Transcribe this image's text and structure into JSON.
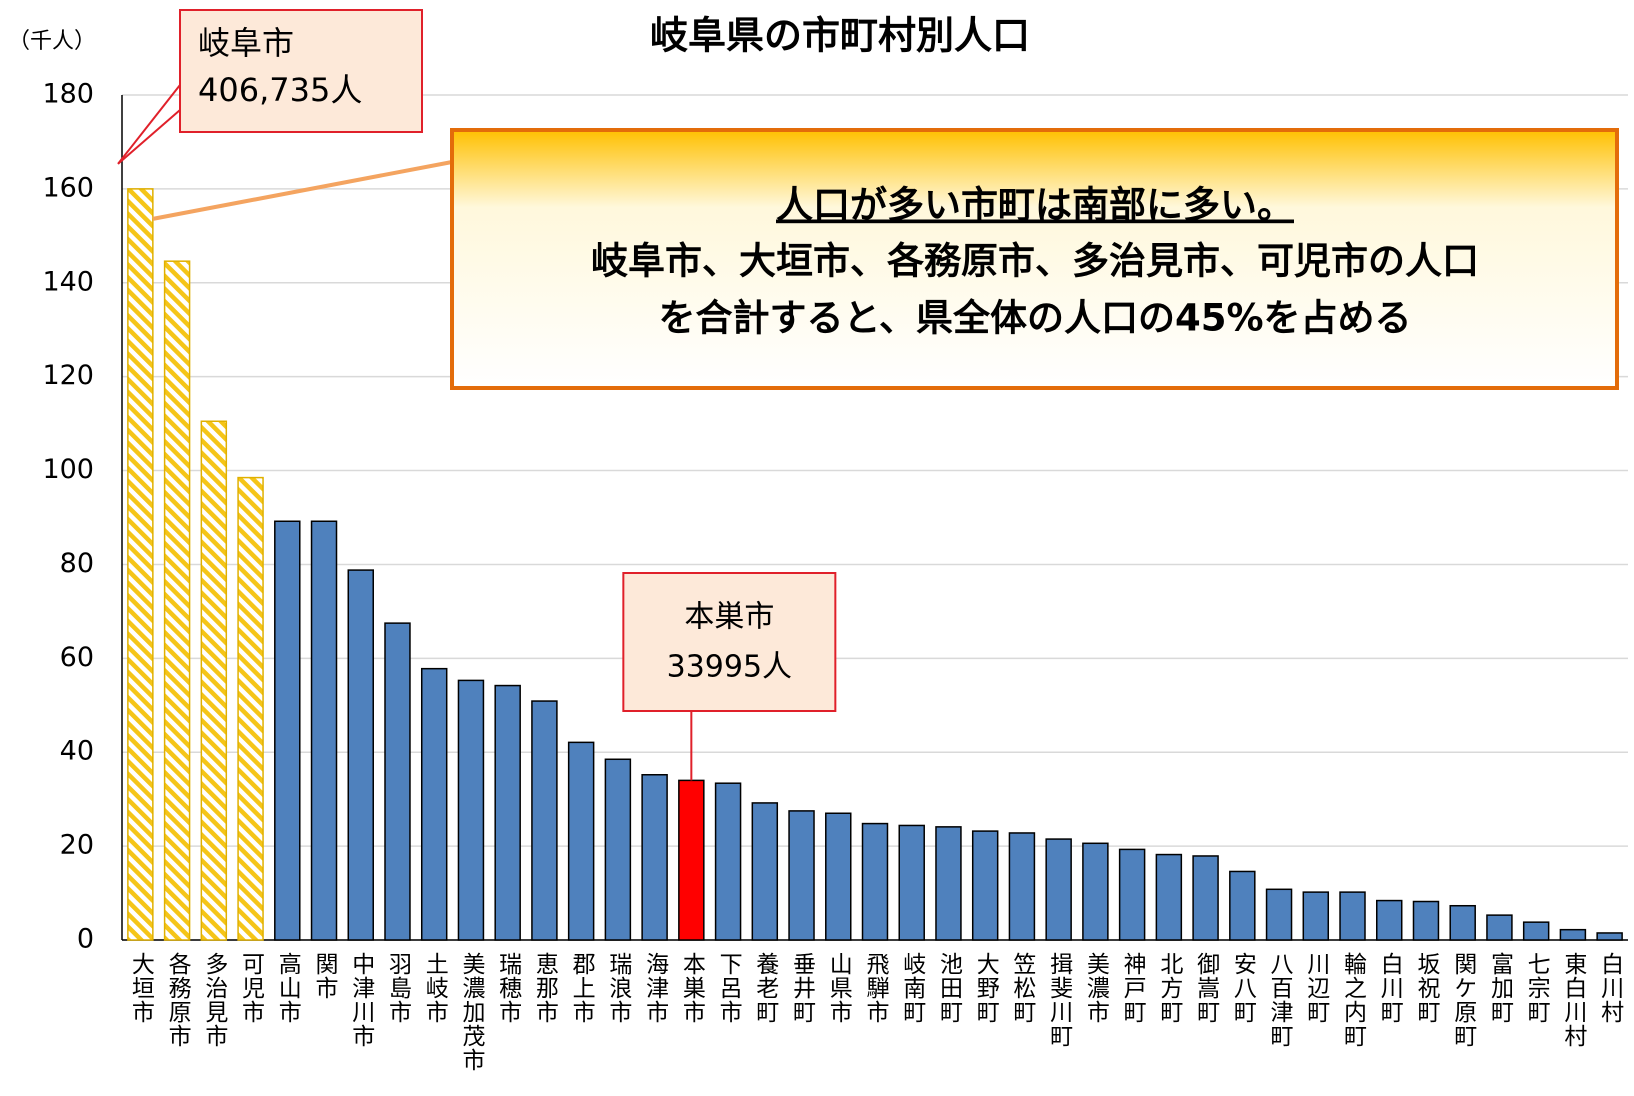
{
  "chart_data": {
    "type": "bar",
    "title": "岐阜県の市町村別人口",
    "y_unit_label": "（千人）",
    "categories": [
      "大垣市",
      "各務原市",
      "多治見市",
      "可児市",
      "高山市",
      "関市",
      "中津川市",
      "羽島市",
      "土岐市",
      "美濃加茂市",
      "瑞穂市",
      "恵那市",
      "郡上市",
      "瑞浪市",
      "海津市",
      "本巣市",
      "下呂市",
      "養老町",
      "垂井町",
      "山県市",
      "飛騨市",
      "岐南町",
      "池田町",
      "大野町",
      "笠松町",
      "揖斐川町",
      "美濃市",
      "神戸町",
      "北方町",
      "御嵩町",
      "安八町",
      "八百津町",
      "川辺町",
      "輪之内町",
      "白川町",
      "坂祝町",
      "関ケ原町",
      "富加町",
      "七宗町",
      "東白川村",
      "白川村"
    ],
    "values": [
      160,
      144.6,
      110.5,
      98.5,
      89.2,
      89.2,
      78.8,
      67.5,
      57.8,
      55.3,
      54.2,
      50.9,
      42.1,
      38.5,
      35.2,
      34.0,
      33.4,
      29.2,
      27.5,
      27.0,
      24.8,
      24.4,
      24.1,
      23.2,
      22.8,
      21.5,
      20.6,
      19.3,
      18.2,
      17.9,
      14.6,
      10.8,
      10.2,
      10.2,
      8.4,
      8.2,
      7.3,
      5.3,
      3.8,
      2.2,
      1.5
    ],
    "colors": [
      "#f5c518",
      "#f5c518",
      "#f5c518",
      "#f5c518",
      "#4f81bd",
      "#4f81bd",
      "#4f81bd",
      "#4f81bd",
      "#4f81bd",
      "#4f81bd",
      "#4f81bd",
      "#4f81bd",
      "#4f81bd",
      "#4f81bd",
      "#4f81bd",
      "#ff0000",
      "#4f81bd",
      "#4f81bd",
      "#4f81bd",
      "#4f81bd",
      "#4f81bd",
      "#4f81bd",
      "#4f81bd",
      "#4f81bd",
      "#4f81bd",
      "#4f81bd",
      "#4f81bd",
      "#4f81bd",
      "#4f81bd",
      "#4f81bd",
      "#4f81bd",
      "#4f81bd",
      "#4f81bd",
      "#4f81bd",
      "#4f81bd",
      "#4f81bd",
      "#4f81bd",
      "#4f81bd",
      "#4f81bd",
      "#4f81bd",
      "#4f81bd"
    ],
    "styles": [
      "hatch",
      "hatch",
      "hatch",
      "hatch",
      "solid",
      "solid",
      "solid",
      "solid",
      "solid",
      "solid",
      "solid",
      "solid",
      "solid",
      "solid",
      "solid",
      "solid",
      "solid",
      "solid",
      "solid",
      "solid",
      "solid",
      "solid",
      "solid",
      "solid",
      "solid",
      "solid",
      "solid",
      "solid",
      "solid",
      "solid",
      "solid",
      "solid",
      "solid",
      "solid",
      "solid",
      "solid",
      "solid",
      "solid",
      "solid",
      "solid",
      "solid"
    ],
    "ylim": [
      0,
      180
    ],
    "yticks": [
      0,
      20,
      40,
      60,
      80,
      100,
      120,
      140,
      160,
      180
    ],
    "grid": true,
    "annotations": [
      {
        "lines": [
          "岐阜市",
          "406,735人"
        ]
      },
      {
        "lines": [
          "人口が多い市町は南部に多い。",
          "岐阜市、大垣市、各務原市、多治見市、可児市の人口",
          "を合計すると、県全体の人口の45%を占める"
        ]
      },
      {
        "lines": [
          "本巣市",
          "33995人"
        ]
      }
    ]
  }
}
